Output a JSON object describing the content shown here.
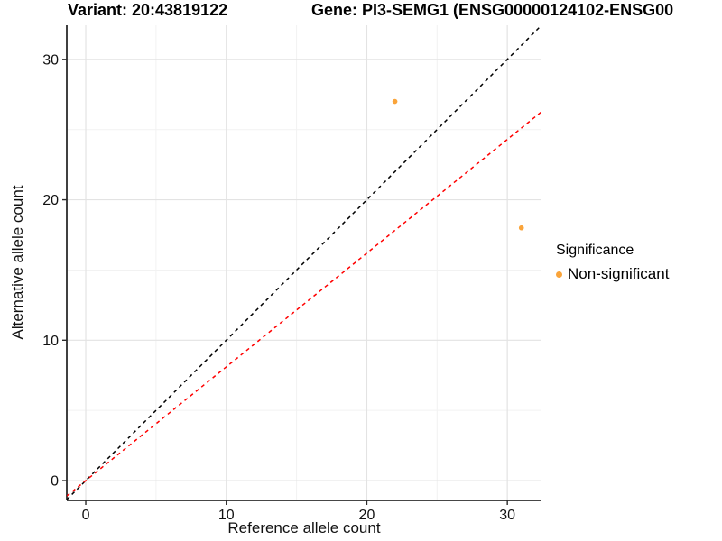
{
  "titles": {
    "variant": "Variant: 20:43819122",
    "gene": "Gene: PI3-SEMG1 (ENSG00000124102-ENSG00"
  },
  "chart_data": {
    "type": "scatter",
    "xlabel": "Reference allele count",
    "ylabel": "Alternative allele count",
    "xlim": [
      -1.35,
      32.43
    ],
    "ylim": [
      -1.41,
      32.43
    ],
    "x_ticks": [
      0,
      10,
      20,
      30
    ],
    "y_ticks": [
      0,
      10,
      20,
      30
    ],
    "x_minor_gridlines": [
      5,
      15,
      25
    ],
    "y_minor_gridlines": [
      5,
      15,
      25
    ],
    "grid": "major-and-minor, light gray on white",
    "series": [
      {
        "name": "Non-significant",
        "color": "#FAA43A",
        "points": [
          {
            "x": 22,
            "y": 27
          },
          {
            "x": 31,
            "y": 18
          }
        ]
      }
    ],
    "lines": [
      {
        "name": "identity",
        "slope": 1,
        "intercept": 0,
        "color": "#000000",
        "style": "dashed"
      },
      {
        "name": "expected-ratio",
        "slope": 0.81,
        "intercept": 0,
        "color": "#FF0000",
        "style": "dashed"
      }
    ],
    "legend": {
      "title": "Significance",
      "position": "right",
      "items": [
        {
          "label": "Non-significant",
          "color": "#FAA43A"
        }
      ]
    }
  }
}
